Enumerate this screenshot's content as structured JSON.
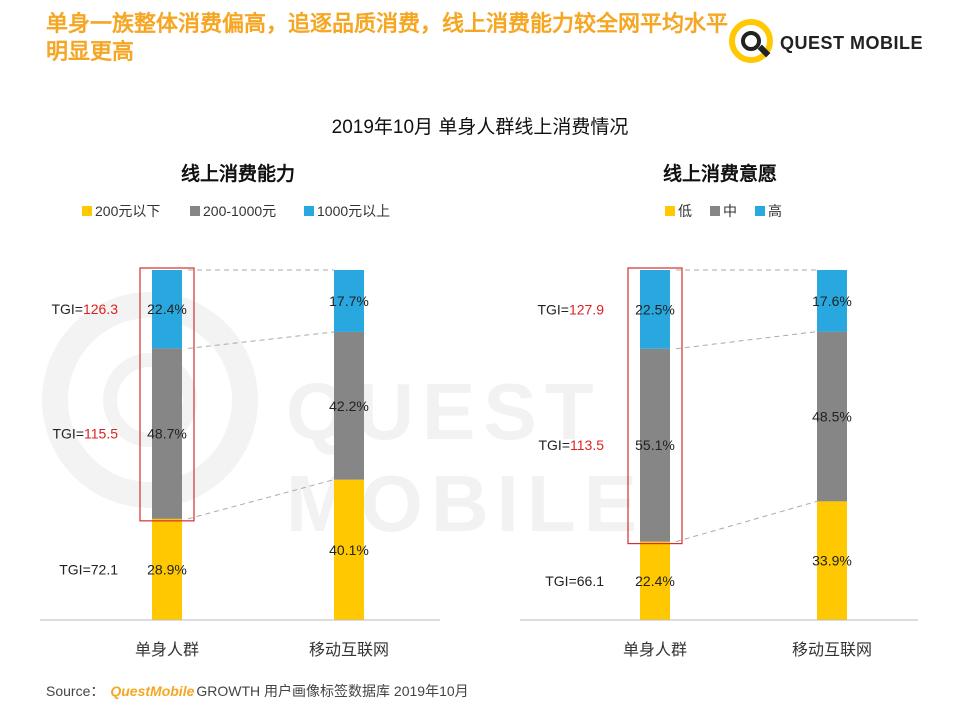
{
  "headline": "单身一族整体消费偏高，追逐品质消费，线上消费能力较全网平均水平明显更高",
  "logo": {
    "text": "QUEST MOBILE"
  },
  "watermark": "QUEST MOBILE",
  "main_title": "2019年10月 单身人群线上消费情况",
  "source": {
    "label": "Source：",
    "brand": "QuestMobile",
    "text": "GROWTH 用户画像标签数据库 2019年10月"
  },
  "colors": {
    "low": "#ffc800",
    "mid": "#868686",
    "high": "#29a8e0",
    "tgi_red": "#e02020",
    "highlight_box": "#d03030"
  },
  "chart_data": [
    {
      "type": "bar",
      "stacked": true,
      "percent": true,
      "title": "线上消费能力",
      "categories": [
        "单身人群",
        "移动互联网"
      ],
      "series": [
        {
          "name": "200元以下",
          "values": [
            28.9,
            40.1
          ],
          "color_key": "low"
        },
        {
          "name": "200-1000元",
          "values": [
            48.7,
            42.2
          ],
          "color_key": "mid"
        },
        {
          "name": "1000元以上",
          "values": [
            22.4,
            17.7
          ],
          "color_key": "high"
        }
      ],
      "value_labels": [
        [
          "28.9%",
          "40.1%"
        ],
        [
          "48.7%",
          "42.2%"
        ],
        [
          "22.4%",
          "17.7%"
        ]
      ],
      "tgi": [
        {
          "prefix": "TGI=",
          "value": "72.1",
          "highlight": false
        },
        {
          "prefix": "TGI=",
          "value": "115.5",
          "highlight": true
        },
        {
          "prefix": "TGI=",
          "value": "126.3",
          "highlight": true
        }
      ],
      "ylim": [
        0,
        100
      ],
      "legend_position": "top-center"
    },
    {
      "type": "bar",
      "stacked": true,
      "percent": true,
      "title": "线上消费意愿",
      "categories": [
        "单身人群",
        "移动互联网"
      ],
      "series": [
        {
          "name": "低",
          "values": [
            22.4,
            33.9
          ],
          "color_key": "low"
        },
        {
          "name": "中",
          "values": [
            55.1,
            48.5
          ],
          "color_key": "mid"
        },
        {
          "name": "高",
          "values": [
            22.5,
            17.6
          ],
          "color_key": "high"
        }
      ],
      "value_labels": [
        [
          "22.4%",
          "33.9%"
        ],
        [
          "55.1%",
          "48.5%"
        ],
        [
          "22.5%",
          "17.6%"
        ]
      ],
      "tgi": [
        {
          "prefix": "TGI=",
          "value": "66.1",
          "highlight": false
        },
        {
          "prefix": "TGI=",
          "value": "113.5",
          "highlight": true
        },
        {
          "prefix": "TGI=",
          "value": "127.9",
          "highlight": true
        }
      ],
      "ylim": [
        0,
        100
      ],
      "legend_position": "top-center"
    }
  ]
}
